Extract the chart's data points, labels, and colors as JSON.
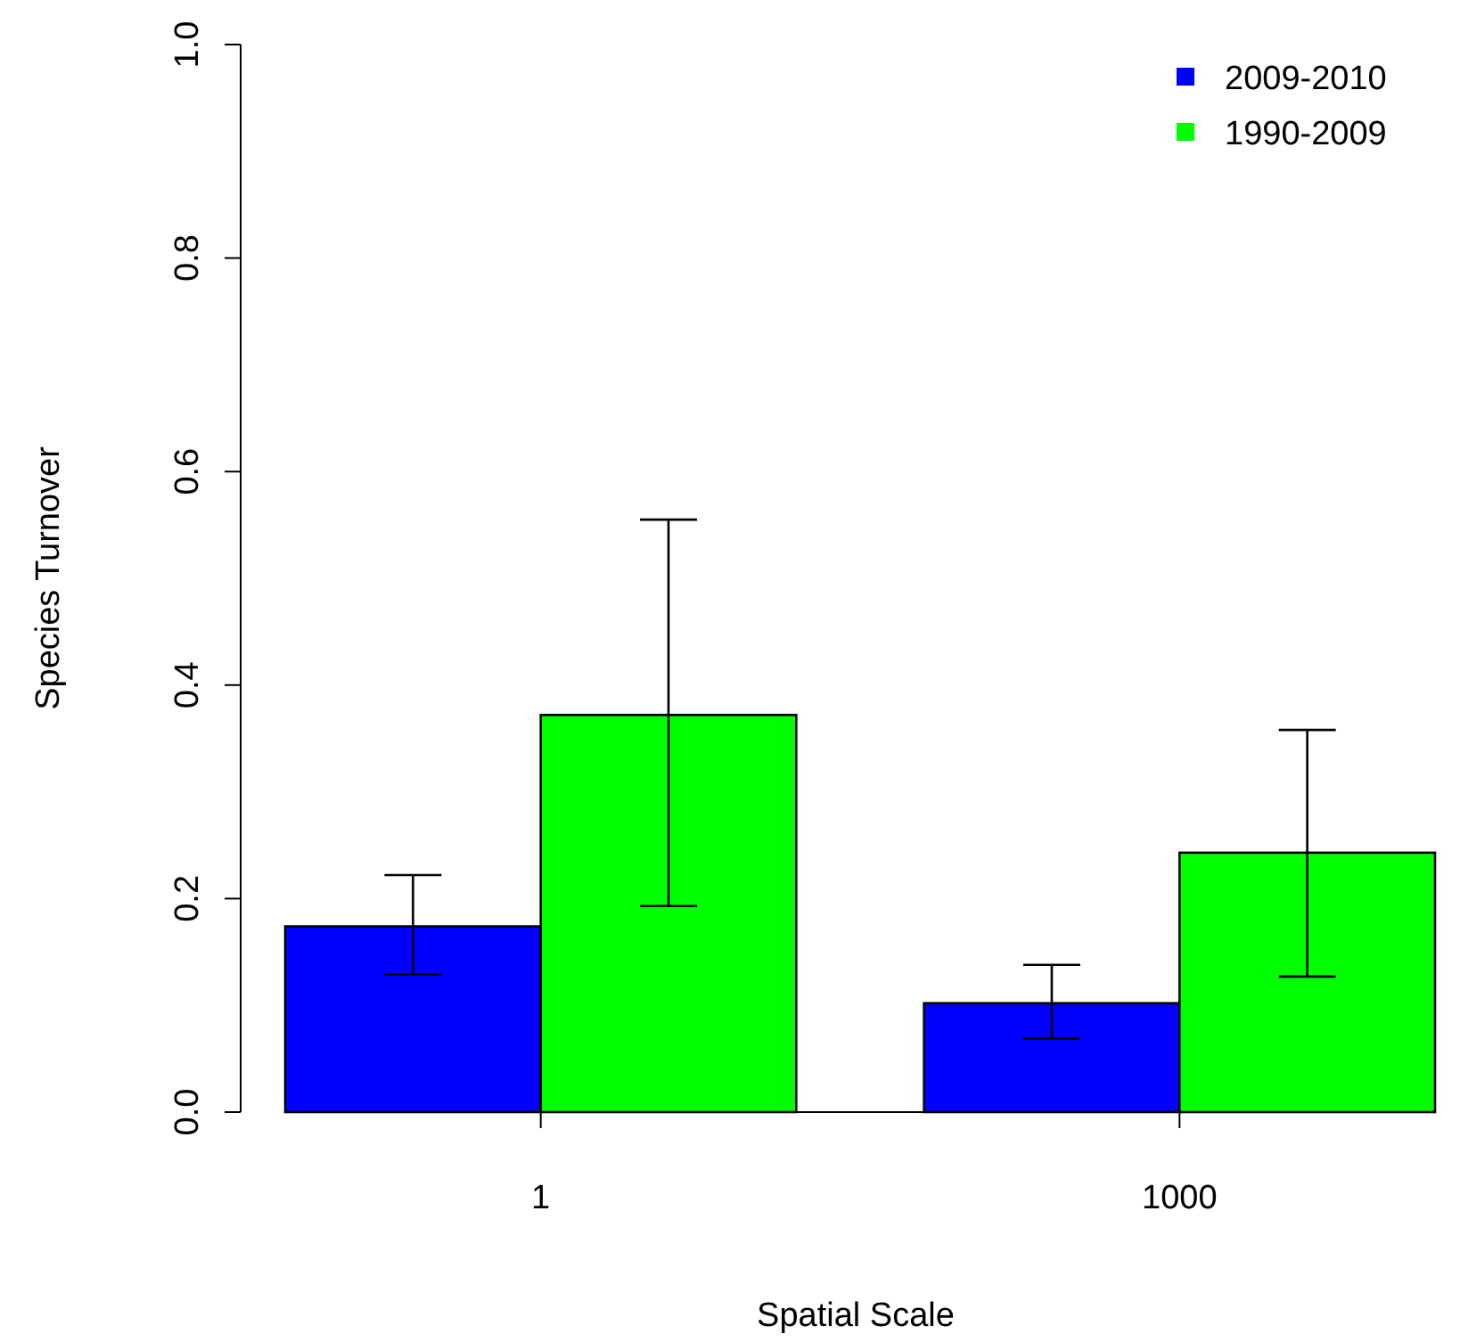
{
  "chart_data": {
    "type": "bar",
    "xlabel": "Spatial Scale",
    "ylabel": "Species Turnover",
    "categories": [
      "1",
      "1000"
    ],
    "series": [
      {
        "name": "2009-2010",
        "color": "#0000ff",
        "values": [
          0.174,
          0.102
        ],
        "errors": [
          [
            0.129,
            0.222
          ],
          [
            0.069,
            0.138
          ]
        ]
      },
      {
        "name": "1990-2009",
        "color": "#00ff00",
        "values": [
          0.372,
          0.243
        ],
        "errors": [
          [
            0.193,
            0.555
          ],
          [
            0.127,
            0.358
          ]
        ]
      }
    ],
    "ylim": [
      0,
      1
    ],
    "yticks": [
      {
        "value": 0,
        "label": "0.0"
      },
      {
        "value": 0.2,
        "label": "0.2"
      },
      {
        "value": 0.4,
        "label": "0.4"
      },
      {
        "value": 0.6,
        "label": "0.6"
      },
      {
        "value": 0.8,
        "label": "0.8"
      },
      {
        "value": 1,
        "label": "1.0"
      }
    ],
    "grid": false,
    "legend": "top right"
  }
}
